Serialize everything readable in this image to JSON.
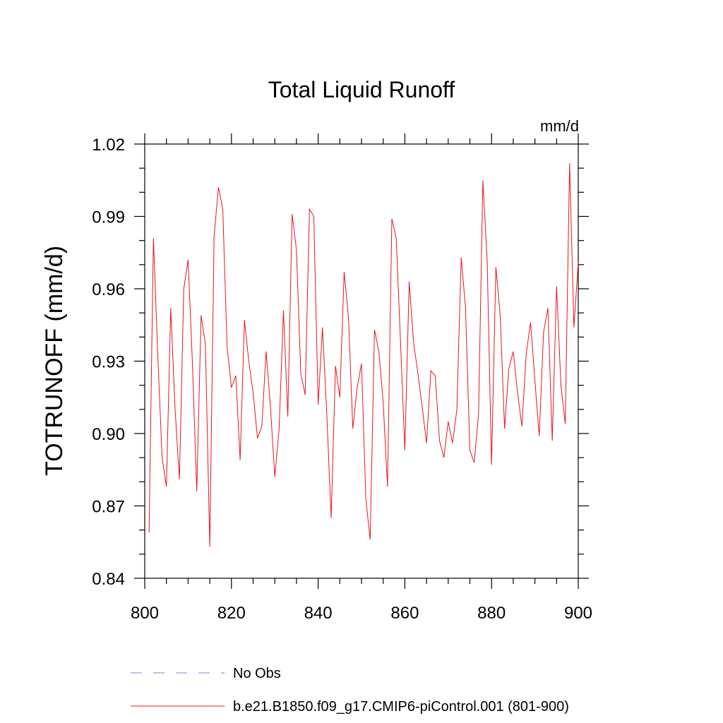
{
  "chart_data": {
    "type": "line",
    "title": "Total Liquid Runoff",
    "units": "mm/d",
    "y_label": "TOTRUNOFF  (mm/d)",
    "x": [
      801,
      802,
      803,
      804,
      805,
      806,
      807,
      808,
      809,
      810,
      811,
      812,
      813,
      814,
      815,
      816,
      817,
      818,
      819,
      820,
      821,
      822,
      823,
      824,
      825,
      826,
      827,
      828,
      829,
      830,
      831,
      832,
      833,
      834,
      835,
      836,
      837,
      838,
      839,
      840,
      841,
      842,
      843,
      844,
      845,
      846,
      847,
      848,
      849,
      850,
      851,
      852,
      853,
      854,
      855,
      856,
      857,
      858,
      859,
      860,
      861,
      862,
      863,
      864,
      865,
      866,
      867,
      868,
      869,
      870,
      871,
      872,
      873,
      874,
      875,
      876,
      877,
      878,
      879,
      880,
      881,
      882,
      883,
      884,
      885,
      886,
      887,
      888,
      889,
      890,
      891,
      892,
      893,
      894,
      895,
      896,
      897,
      898,
      899,
      900
    ],
    "series": [
      {
        "name": "b.e21.B1850.f09_g17.CMIP6-piControl.001 (801-900)",
        "color": "#e8141e",
        "values": [
          0.859,
          0.981,
          0.933,
          0.89,
          0.878,
          0.952,
          0.91,
          0.881,
          0.96,
          0.972,
          0.929,
          0.876,
          0.949,
          0.937,
          0.853,
          0.982,
          1.002,
          0.993,
          0.936,
          0.919,
          0.924,
          0.889,
          0.947,
          0.93,
          0.917,
          0.898,
          0.903,
          0.934,
          0.911,
          0.882,
          0.902,
          0.951,
          0.907,
          0.991,
          0.976,
          0.925,
          0.916,
          0.993,
          0.99,
          0.912,
          0.944,
          0.908,
          0.865,
          0.928,
          0.915,
          0.967,
          0.948,
          0.902,
          0.919,
          0.929,
          0.873,
          0.856,
          0.943,
          0.934,
          0.913,
          0.878,
          0.989,
          0.981,
          0.938,
          0.893,
          0.963,
          0.938,
          0.925,
          0.911,
          0.896,
          0.926,
          0.924,
          0.897,
          0.89,
          0.905,
          0.896,
          0.91,
          0.973,
          0.952,
          0.893,
          0.888,
          0.908,
          1.005,
          0.971,
          0.887,
          0.969,
          0.949,
          0.902,
          0.927,
          0.934,
          0.917,
          0.903,
          0.933,
          0.946,
          0.922,
          0.899,
          0.942,
          0.952,
          0.897,
          0.961,
          0.92,
          0.904,
          1.012,
          0.944,
          0.971
        ]
      }
    ],
    "reference_lines": [
      {
        "name": "No Obs",
        "color": "#8a80d0",
        "style": "dashed"
      }
    ],
    "xlim": [
      800,
      900
    ],
    "xticks": [
      800,
      820,
      840,
      860,
      880,
      900
    ],
    "xminorticks": [
      805,
      810,
      815,
      825,
      830,
      835,
      845,
      850,
      855,
      865,
      870,
      875,
      885,
      890,
      895
    ],
    "ylim": [
      0.84,
      1.02
    ],
    "yticks": [
      {
        "value": 0.84,
        "label": "0.84"
      },
      {
        "value": 0.87,
        "label": "0.87"
      },
      {
        "value": 0.9,
        "label": "0.90"
      },
      {
        "value": 0.93,
        "label": "0.93"
      },
      {
        "value": 0.96,
        "label": "0.96"
      },
      {
        "value": 0.99,
        "label": "0.99"
      },
      {
        "value": 1.02,
        "label": "1.02"
      }
    ],
    "yminorticks": [
      0.85,
      0.86,
      0.88,
      0.89,
      0.91,
      0.92,
      0.94,
      0.95,
      0.97,
      0.98,
      1.0,
      1.01
    ],
    "grid": false
  }
}
